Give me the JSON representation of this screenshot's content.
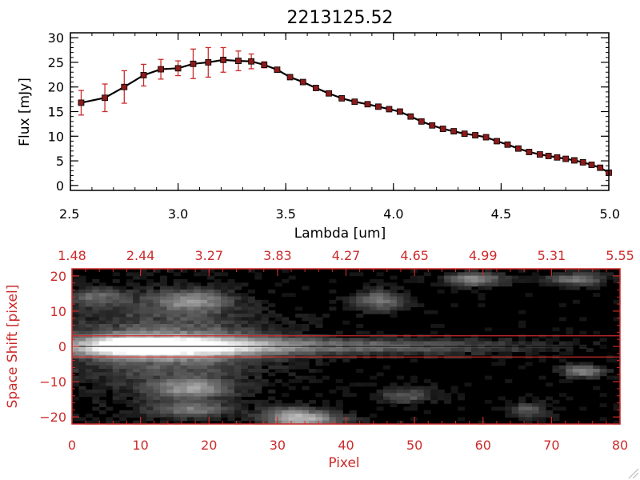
{
  "colors": {
    "background": "#ffffff",
    "axis_top": "#000000",
    "data_line": "#000000",
    "marker": "#8b1a1a",
    "error_bar": "#cc2b2b",
    "axis_bottom": "#cc2b2b"
  },
  "chart_data": [
    {
      "type": "line",
      "title": "2213125.52",
      "xlabel": "Lambda [um]",
      "ylabel": "Flux [mJy]",
      "xlim": [
        2.5,
        5.0
      ],
      "ylim": [
        -1,
        31
      ],
      "x_ticks": [
        2.5,
        3.0,
        3.5,
        4.0,
        4.5,
        5.0
      ],
      "x_tick_labels": [
        "2.5",
        "3.0",
        "3.5",
        "4.0",
        "4.5",
        "5.0"
      ],
      "y_ticks": [
        0,
        5,
        10,
        15,
        20,
        25,
        30
      ],
      "y_tick_labels": [
        "0",
        "5",
        "10",
        "15",
        "20",
        "25",
        "30"
      ],
      "grid": false,
      "series": [
        {
          "x": [
            2.55,
            2.66,
            2.75,
            2.84,
            2.92,
            3.0,
            3.07,
            3.14,
            3.21,
            3.28,
            3.34,
            3.4,
            3.46,
            3.52,
            3.58,
            3.64,
            3.7,
            3.76,
            3.82,
            3.88,
            3.93,
            3.98,
            4.03,
            4.08,
            4.13,
            4.18,
            4.23,
            4.28,
            4.33,
            4.38,
            4.43,
            4.48,
            4.53,
            4.58,
            4.63,
            4.68,
            4.72,
            4.76,
            4.8,
            4.84,
            4.88,
            4.92,
            4.96,
            5.0
          ],
          "y": [
            16.8,
            17.8,
            20.0,
            22.4,
            23.6,
            23.8,
            24.7,
            25.0,
            25.5,
            25.3,
            25.2,
            24.5,
            23.5,
            22.0,
            21.0,
            19.8,
            18.7,
            17.7,
            17.0,
            16.5,
            16.0,
            15.5,
            15.0,
            14.0,
            13.0,
            12.2,
            11.5,
            11.0,
            10.5,
            10.2,
            9.8,
            9.0,
            8.3,
            7.5,
            6.8,
            6.3,
            6.0,
            5.7,
            5.4,
            5.1,
            4.7,
            4.2,
            3.6,
            2.6
          ],
          "yerr": [
            2.5,
            2.8,
            3.3,
            2.2,
            2.0,
            1.5,
            3.0,
            3.0,
            2.5,
            2.0,
            1.5,
            0.6,
            0.5,
            0.5,
            0.5,
            0.5,
            0.5,
            0.5,
            0.5,
            0.5,
            0.5,
            0.5,
            0.5,
            0.5,
            0.5,
            0.5,
            0.5,
            0.5,
            0.5,
            0.5,
            0.5,
            0.5,
            0.5,
            0.5,
            0.5,
            0.5,
            0.5,
            0.5,
            0.5,
            0.5,
            0.5,
            0.5,
            0.5,
            0.5
          ]
        }
      ]
    },
    {
      "type": "heatmap",
      "xlabel": "Pixel",
      "ylabel": "Space Shift [pixel]",
      "xlim": [
        0,
        80
      ],
      "ylim": [
        -22,
        22
      ],
      "x_ticks": [
        0,
        10,
        20,
        30,
        40,
        50,
        60,
        70,
        80
      ],
      "x_tick_labels": [
        "0",
        "10",
        "20",
        "30",
        "40",
        "50",
        "60",
        "70",
        "80"
      ],
      "y_ticks": [
        -20,
        -10,
        0,
        10,
        20
      ],
      "y_tick_labels": [
        "−20",
        "−10",
        "0",
        "10",
        "20"
      ],
      "top_ticks": [
        0,
        10,
        20,
        30,
        40,
        50,
        60,
        70,
        80
      ],
      "top_tick_labels": [
        "1.48",
        "2.44",
        "3.27",
        "3.83",
        "4.27",
        "4.65",
        "4.99",
        "5.31",
        "5.55"
      ],
      "extraction_window": [
        -3,
        3
      ],
      "sources": [
        {
          "x": 13,
          "y": 0,
          "amp": 1.0,
          "sx": 11,
          "sy": 2.0
        },
        {
          "x": 8,
          "y": 0,
          "amp": 0.55,
          "sx": 3,
          "sy": 1.6
        },
        {
          "x": 45,
          "y": 0,
          "amp": 0.35,
          "sx": 16,
          "sy": 1.5
        },
        {
          "x": 15,
          "y": 0,
          "amp": 0.3,
          "sx": 10,
          "sy": 8
        },
        {
          "x": 17,
          "y": 13,
          "amp": 0.45,
          "sx": 4,
          "sy": 2
        },
        {
          "x": 45,
          "y": 13,
          "amp": 0.4,
          "sx": 2.5,
          "sy": 2
        },
        {
          "x": 59,
          "y": 19,
          "amp": 0.5,
          "sx": 3,
          "sy": 1.3
        },
        {
          "x": 74,
          "y": 19,
          "amp": 0.4,
          "sx": 3,
          "sy": 1.2
        },
        {
          "x": 75,
          "y": -7,
          "amp": 0.5,
          "sx": 2,
          "sy": 1.2
        },
        {
          "x": 17,
          "y": -12,
          "amp": 0.45,
          "sx": 4,
          "sy": 2
        },
        {
          "x": 17,
          "y": -18,
          "amp": 0.4,
          "sx": 4,
          "sy": 1.5
        },
        {
          "x": 34,
          "y": -21,
          "amp": 0.55,
          "sx": 4,
          "sy": 1.5
        },
        {
          "x": 67,
          "y": -18,
          "amp": 0.3,
          "sx": 2,
          "sy": 1.5
        },
        {
          "x": 49,
          "y": -14,
          "amp": 0.3,
          "sx": 3,
          "sy": 1.5
        },
        {
          "x": 3,
          "y": 14,
          "amp": 0.3,
          "sx": 3,
          "sy": 2
        },
        {
          "x": 32,
          "y": -19,
          "amp": 0.35,
          "sx": 3,
          "sy": 1.5
        }
      ]
    }
  ]
}
